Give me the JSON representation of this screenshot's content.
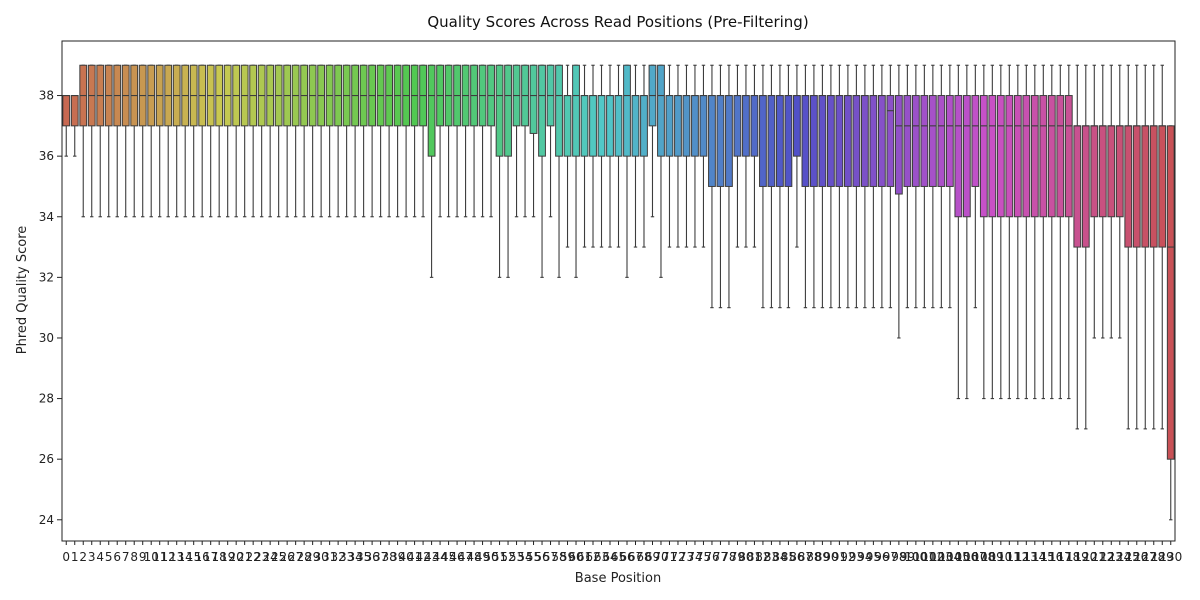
{
  "chart_data": {
    "type": "box",
    "title": "Quality Scores Across Read Positions (Pre-Filtering)",
    "xlabel": "Base Position",
    "ylabel": "Phred Quality Score",
    "ylim": [
      23.3,
      39.8
    ],
    "yticks": [
      24,
      26,
      28,
      30,
      32,
      34,
      36,
      38
    ],
    "grid": false,
    "legend": "none",
    "palette": "husl",
    "positions": [
      0,
      1,
      2,
      3,
      4,
      5,
      6,
      7,
      8,
      9,
      10,
      11,
      12,
      13,
      14,
      15,
      16,
      17,
      18,
      19,
      20,
      21,
      22,
      23,
      24,
      25,
      26,
      27,
      28,
      29,
      30,
      31,
      32,
      33,
      34,
      35,
      36,
      37,
      38,
      39,
      40,
      41,
      42,
      43,
      44,
      45,
      46,
      47,
      48,
      49,
      50,
      51,
      52,
      53,
      54,
      55,
      56,
      57,
      58,
      59,
      60,
      61,
      62,
      63,
      64,
      65,
      66,
      67,
      68,
      69,
      70,
      71,
      72,
      73,
      74,
      75,
      76,
      77,
      78,
      79,
      80,
      81,
      82,
      83,
      84,
      85,
      86,
      87,
      88,
      89,
      90,
      91,
      92,
      93,
      94,
      95,
      96,
      97,
      98,
      99,
      100,
      101,
      102,
      103,
      104,
      105,
      106,
      107,
      108,
      109,
      110,
      111,
      112,
      113,
      114,
      115,
      116,
      117,
      118,
      119,
      120,
      121,
      122,
      123,
      124,
      125,
      126,
      127,
      128,
      129,
      130
    ],
    "boxes": [
      {
        "q1": 37,
        "median": 38,
        "q3": 38,
        "whislo": 36,
        "whishi": 38
      },
      {
        "q1": 37,
        "median": 38,
        "q3": 38,
        "whislo": 36,
        "whishi": 38
      },
      {
        "q1": 37,
        "median": 38,
        "q3": 39,
        "whislo": 34,
        "whishi": 39
      },
      {
        "q1": 37,
        "median": 38,
        "q3": 39,
        "whislo": 34,
        "whishi": 39
      },
      {
        "q1": 37,
        "median": 38,
        "q3": 39,
        "whislo": 34,
        "whishi": 39
      },
      {
        "q1": 37,
        "median": 38,
        "q3": 39,
        "whislo": 34,
        "whishi": 39
      },
      {
        "q1": 37,
        "median": 38,
        "q3": 39,
        "whislo": 34,
        "whishi": 39
      },
      {
        "q1": 37,
        "median": 38,
        "q3": 39,
        "whislo": 34,
        "whishi": 39
      },
      {
        "q1": 37,
        "median": 38,
        "q3": 39,
        "whislo": 34,
        "whishi": 39
      },
      {
        "q1": 37,
        "median": 38,
        "q3": 39,
        "whislo": 34,
        "whishi": 39
      },
      {
        "q1": 37,
        "median": 38,
        "q3": 39,
        "whislo": 34,
        "whishi": 39
      },
      {
        "q1": 37,
        "median": 38,
        "q3": 39,
        "whislo": 34,
        "whishi": 39
      },
      {
        "q1": 37,
        "median": 38,
        "q3": 39,
        "whislo": 34,
        "whishi": 39
      },
      {
        "q1": 37,
        "median": 38,
        "q3": 39,
        "whislo": 34,
        "whishi": 39
      },
      {
        "q1": 37,
        "median": 38,
        "q3": 39,
        "whislo": 34,
        "whishi": 39
      },
      {
        "q1": 37,
        "median": 38,
        "q3": 39,
        "whislo": 34,
        "whishi": 39
      },
      {
        "q1": 37,
        "median": 38,
        "q3": 39,
        "whislo": 34,
        "whishi": 39
      },
      {
        "q1": 37,
        "median": 38,
        "q3": 39,
        "whislo": 34,
        "whishi": 39
      },
      {
        "q1": 37,
        "median": 38,
        "q3": 39,
        "whislo": 34,
        "whishi": 39
      },
      {
        "q1": 37,
        "median": 38,
        "q3": 39,
        "whislo": 34,
        "whishi": 39
      },
      {
        "q1": 37,
        "median": 38,
        "q3": 39,
        "whislo": 34,
        "whishi": 39
      },
      {
        "q1": 37,
        "median": 38,
        "q3": 39,
        "whislo": 34,
        "whishi": 39
      },
      {
        "q1": 37,
        "median": 38,
        "q3": 39,
        "whislo": 34,
        "whishi": 39
      },
      {
        "q1": 37,
        "median": 38,
        "q3": 39,
        "whislo": 34,
        "whishi": 39
      },
      {
        "q1": 37,
        "median": 38,
        "q3": 39,
        "whislo": 34,
        "whishi": 39
      },
      {
        "q1": 37,
        "median": 38,
        "q3": 39,
        "whislo": 34,
        "whishi": 39
      },
      {
        "q1": 37,
        "median": 38,
        "q3": 39,
        "whislo": 34,
        "whishi": 39
      },
      {
        "q1": 37,
        "median": 38,
        "q3": 39,
        "whislo": 34,
        "whishi": 39
      },
      {
        "q1": 37,
        "median": 38,
        "q3": 39,
        "whislo": 34,
        "whishi": 39
      },
      {
        "q1": 37,
        "median": 38,
        "q3": 39,
        "whislo": 34,
        "whishi": 39
      },
      {
        "q1": 37,
        "median": 38,
        "q3": 39,
        "whislo": 34,
        "whishi": 39
      },
      {
        "q1": 37,
        "median": 38,
        "q3": 39,
        "whislo": 34,
        "whishi": 39
      },
      {
        "q1": 37,
        "median": 38,
        "q3": 39,
        "whislo": 34,
        "whishi": 39
      },
      {
        "q1": 37,
        "median": 38,
        "q3": 39,
        "whislo": 34,
        "whishi": 39
      },
      {
        "q1": 37,
        "median": 38,
        "q3": 39,
        "whislo": 34,
        "whishi": 39
      },
      {
        "q1": 37,
        "median": 38,
        "q3": 39,
        "whislo": 34,
        "whishi": 39
      },
      {
        "q1": 37,
        "median": 38,
        "q3": 39,
        "whislo": 34,
        "whishi": 39
      },
      {
        "q1": 37,
        "median": 38,
        "q3": 39,
        "whislo": 34,
        "whishi": 39
      },
      {
        "q1": 37,
        "median": 38,
        "q3": 39,
        "whislo": 34,
        "whishi": 39
      },
      {
        "q1": 37,
        "median": 38,
        "q3": 39,
        "whislo": 34,
        "whishi": 39
      },
      {
        "q1": 37,
        "median": 38,
        "q3": 39,
        "whislo": 34,
        "whishi": 39
      },
      {
        "q1": 37,
        "median": 38,
        "q3": 39,
        "whislo": 34,
        "whishi": 39
      },
      {
        "q1": 37,
        "median": 38,
        "q3": 39,
        "whislo": 34,
        "whishi": 39
      },
      {
        "q1": 36,
        "median": 38,
        "q3": 39,
        "whislo": 32,
        "whishi": 39
      },
      {
        "q1": 37,
        "median": 38,
        "q3": 39,
        "whislo": 34,
        "whishi": 39
      },
      {
        "q1": 37,
        "median": 38,
        "q3": 39,
        "whislo": 34,
        "whishi": 39
      },
      {
        "q1": 37,
        "median": 38,
        "q3": 39,
        "whislo": 34,
        "whishi": 39
      },
      {
        "q1": 37,
        "median": 38,
        "q3": 39,
        "whislo": 34,
        "whishi": 39
      },
      {
        "q1": 37,
        "median": 38,
        "q3": 39,
        "whislo": 34,
        "whishi": 39
      },
      {
        "q1": 37,
        "median": 38,
        "q3": 39,
        "whislo": 34,
        "whishi": 39
      },
      {
        "q1": 37,
        "median": 38,
        "q3": 39,
        "whislo": 34,
        "whishi": 39
      },
      {
        "q1": 36,
        "median": 38,
        "q3": 39,
        "whislo": 32,
        "whishi": 39
      },
      {
        "q1": 36,
        "median": 38,
        "q3": 39,
        "whislo": 32,
        "whishi": 39
      },
      {
        "q1": 37,
        "median": 38,
        "q3": 39,
        "whislo": 34,
        "whishi": 39
      },
      {
        "q1": 37,
        "median": 38,
        "q3": 39,
        "whislo": 34,
        "whishi": 39
      },
      {
        "q1": 36.75,
        "median": 38,
        "q3": 39,
        "whislo": 34,
        "whishi": 39
      },
      {
        "q1": 36,
        "median": 38,
        "q3": 39,
        "whislo": 32,
        "whishi": 39
      },
      {
        "q1": 37,
        "median": 38,
        "q3": 39,
        "whislo": 34,
        "whishi": 39
      },
      {
        "q1": 36,
        "median": 38,
        "q3": 39,
        "whislo": 32,
        "whishi": 39
      },
      {
        "q1": 36,
        "median": 38,
        "q3": 38,
        "whislo": 33,
        "whishi": 39
      },
      {
        "q1": 36,
        "median": 38,
        "q3": 39,
        "whislo": 32,
        "whishi": 39
      },
      {
        "q1": 36,
        "median": 38,
        "q3": 38,
        "whislo": 33,
        "whishi": 39
      },
      {
        "q1": 36,
        "median": 38,
        "q3": 38,
        "whislo": 33,
        "whishi": 39
      },
      {
        "q1": 36,
        "median": 38,
        "q3": 38,
        "whislo": 33,
        "whishi": 39
      },
      {
        "q1": 36,
        "median": 38,
        "q3": 38,
        "whislo": 33,
        "whishi": 39
      },
      {
        "q1": 36,
        "median": 38,
        "q3": 38,
        "whislo": 33,
        "whishi": 39
      },
      {
        "q1": 36,
        "median": 38,
        "q3": 39,
        "whislo": 32,
        "whishi": 39
      },
      {
        "q1": 36,
        "median": 38,
        "q3": 38,
        "whislo": 33,
        "whishi": 39
      },
      {
        "q1": 36,
        "median": 38,
        "q3": 38,
        "whislo": 33,
        "whishi": 39
      },
      {
        "q1": 37,
        "median": 38,
        "q3": 39,
        "whislo": 34,
        "whishi": 39
      },
      {
        "q1": 36,
        "median": 38,
        "q3": 39,
        "whislo": 32,
        "whishi": 39
      },
      {
        "q1": 36,
        "median": 38,
        "q3": 38,
        "whislo": 33,
        "whishi": 39
      },
      {
        "q1": 36,
        "median": 38,
        "q3": 38,
        "whislo": 33,
        "whishi": 39
      },
      {
        "q1": 36,
        "median": 38,
        "q3": 38,
        "whislo": 33,
        "whishi": 39
      },
      {
        "q1": 36,
        "median": 38,
        "q3": 38,
        "whislo": 33,
        "whishi": 39
      },
      {
        "q1": 36,
        "median": 38,
        "q3": 38,
        "whislo": 33,
        "whishi": 39
      },
      {
        "q1": 35,
        "median": 38,
        "q3": 38,
        "whislo": 31,
        "whishi": 39
      },
      {
        "q1": 35,
        "median": 38,
        "q3": 38,
        "whislo": 31,
        "whishi": 39
      },
      {
        "q1": 35,
        "median": 38,
        "q3": 38,
        "whislo": 31,
        "whishi": 39
      },
      {
        "q1": 36,
        "median": 38,
        "q3": 38,
        "whislo": 33,
        "whishi": 39
      },
      {
        "q1": 36,
        "median": 38,
        "q3": 38,
        "whislo": 33,
        "whishi": 39
      },
      {
        "q1": 36,
        "median": 38,
        "q3": 38,
        "whislo": 33,
        "whishi": 39
      },
      {
        "q1": 35,
        "median": 38,
        "q3": 38,
        "whislo": 31,
        "whishi": 39
      },
      {
        "q1": 35,
        "median": 38,
        "q3": 38,
        "whislo": 31,
        "whishi": 39
      },
      {
        "q1": 35,
        "median": 38,
        "q3": 38,
        "whislo": 31,
        "whishi": 39
      },
      {
        "q1": 35,
        "median": 38,
        "q3": 38,
        "whislo": 31,
        "whishi": 39
      },
      {
        "q1": 36,
        "median": 38,
        "q3": 38,
        "whislo": 33,
        "whishi": 39
      },
      {
        "q1": 35,
        "median": 38,
        "q3": 38,
        "whislo": 31,
        "whishi": 39
      },
      {
        "q1": 35,
        "median": 38,
        "q3": 38,
        "whislo": 31,
        "whishi": 39
      },
      {
        "q1": 35,
        "median": 38,
        "q3": 38,
        "whislo": 31,
        "whishi": 39
      },
      {
        "q1": 35,
        "median": 38,
        "q3": 38,
        "whislo": 31,
        "whishi": 39
      },
      {
        "q1": 35,
        "median": 38,
        "q3": 38,
        "whislo": 31,
        "whishi": 39
      },
      {
        "q1": 35,
        "median": 38,
        "q3": 38,
        "whislo": 31,
        "whishi": 39
      },
      {
        "q1": 35,
        "median": 38,
        "q3": 38,
        "whislo": 31,
        "whishi": 39
      },
      {
        "q1": 35,
        "median": 38,
        "q3": 38,
        "whislo": 31,
        "whishi": 39
      },
      {
        "q1": 35,
        "median": 38,
        "q3": 38,
        "whislo": 31,
        "whishi": 39
      },
      {
        "q1": 35,
        "median": 38,
        "q3": 38,
        "whislo": 31,
        "whishi": 39
      },
      {
        "q1": 35,
        "median": 37.5,
        "q3": 38,
        "whislo": 31,
        "whishi": 39
      },
      {
        "q1": 34.75,
        "median": 37,
        "q3": 38,
        "whislo": 30,
        "whishi": 39
      },
      {
        "q1": 35,
        "median": 37,
        "q3": 38,
        "whislo": 31,
        "whishi": 39
      },
      {
        "q1": 35,
        "median": 37,
        "q3": 38,
        "whislo": 31,
        "whishi": 39
      },
      {
        "q1": 35,
        "median": 37,
        "q3": 38,
        "whislo": 31,
        "whishi": 39
      },
      {
        "q1": 35,
        "median": 37,
        "q3": 38,
        "whislo": 31,
        "whishi": 39
      },
      {
        "q1": 35,
        "median": 37,
        "q3": 38,
        "whislo": 31,
        "whishi": 39
      },
      {
        "q1": 35,
        "median": 37,
        "q3": 38,
        "whislo": 31,
        "whishi": 39
      },
      {
        "q1": 34,
        "median": 37,
        "q3": 38,
        "whislo": 28,
        "whishi": 39
      },
      {
        "q1": 34,
        "median": 37,
        "q3": 38,
        "whislo": 28,
        "whishi": 39
      },
      {
        "q1": 35,
        "median": 37,
        "q3": 38,
        "whislo": 31,
        "whishi": 39
      },
      {
        "q1": 34,
        "median": 37,
        "q3": 38,
        "whislo": 28,
        "whishi": 39
      },
      {
        "q1": 34,
        "median": 37,
        "q3": 38,
        "whislo": 28,
        "whishi": 39
      },
      {
        "q1": 34,
        "median": 37,
        "q3": 38,
        "whislo": 28,
        "whishi": 39
      },
      {
        "q1": 34,
        "median": 37,
        "q3": 38,
        "whislo": 28,
        "whishi": 39
      },
      {
        "q1": 34,
        "median": 37,
        "q3": 38,
        "whislo": 28,
        "whishi": 39
      },
      {
        "q1": 34,
        "median": 37,
        "q3": 38,
        "whislo": 28,
        "whishi": 39
      },
      {
        "q1": 34,
        "median": 37,
        "q3": 38,
        "whislo": 28,
        "whishi": 39
      },
      {
        "q1": 34,
        "median": 37,
        "q3": 38,
        "whislo": 28,
        "whishi": 39
      },
      {
        "q1": 34,
        "median": 37,
        "q3": 38,
        "whislo": 28,
        "whishi": 39
      },
      {
        "q1": 34,
        "median": 37,
        "q3": 38,
        "whislo": 28,
        "whishi": 39
      },
      {
        "q1": 34,
        "median": 37,
        "q3": 38,
        "whislo": 28,
        "whishi": 39
      },
      {
        "q1": 33,
        "median": 37,
        "q3": 37,
        "whislo": 27,
        "whishi": 39
      },
      {
        "q1": 33,
        "median": 37,
        "q3": 37,
        "whislo": 27,
        "whishi": 39
      },
      {
        "q1": 34,
        "median": 37,
        "q3": 37,
        "whislo": 30,
        "whishi": 39
      },
      {
        "q1": 34,
        "median": 37,
        "q3": 37,
        "whislo": 30,
        "whishi": 39
      },
      {
        "q1": 34,
        "median": 37,
        "q3": 37,
        "whislo": 30,
        "whishi": 39
      },
      {
        "q1": 34,
        "median": 37,
        "q3": 37,
        "whislo": 30,
        "whishi": 39
      },
      {
        "q1": 33,
        "median": 37,
        "q3": 37,
        "whislo": 27,
        "whishi": 39
      },
      {
        "q1": 33,
        "median": 37,
        "q3": 37,
        "whislo": 27,
        "whishi": 39
      },
      {
        "q1": 33,
        "median": 37,
        "q3": 37,
        "whislo": 27,
        "whishi": 39
      },
      {
        "q1": 33,
        "median": 37,
        "q3": 37,
        "whislo": 27,
        "whishi": 39
      },
      {
        "q1": 33,
        "median": 37,
        "q3": 37,
        "whislo": 27,
        "whishi": 39
      },
      {
        "q1": 26,
        "median": 33,
        "q3": 37,
        "whislo": 24,
        "whishi": 37
      }
    ]
  }
}
